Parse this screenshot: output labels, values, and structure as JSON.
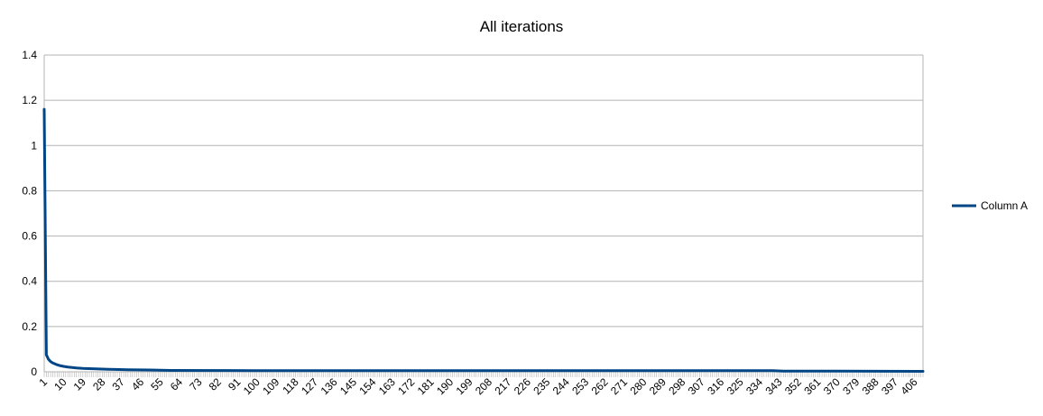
{
  "chart_data": {
    "type": "line",
    "title": "All iterations",
    "xlabel": "",
    "ylabel": "",
    "x_range": [
      1,
      410
    ],
    "ylim": [
      0,
      1.4
    ],
    "y_ticks": [
      0,
      0.2,
      0.4,
      0.6,
      0.8,
      1,
      1.2,
      1.4
    ],
    "y_tick_labels": [
      "0",
      "0.2",
      "0.4",
      "0.6",
      "0.8",
      "1",
      "1.2",
      "1.4"
    ],
    "x_tick_labels": [
      "1",
      "10",
      "19",
      "28",
      "37",
      "46",
      "55",
      "64",
      "73",
      "82",
      "91",
      "100",
      "109",
      "118",
      "127",
      "136",
      "145",
      "154",
      "163",
      "172",
      "181",
      "190",
      "199",
      "208",
      "217",
      "226",
      "235",
      "244",
      "253",
      "262",
      "271",
      "280",
      "289",
      "298",
      "307",
      "316",
      "325",
      "334",
      "343",
      "352",
      "361",
      "370",
      "379",
      "388",
      "397",
      "406"
    ],
    "grid": "horizontal",
    "legend_position": "right",
    "series": [
      {
        "name": "Column A",
        "color": "#004586",
        "x": [
          1,
          2,
          3,
          4,
          5,
          6,
          7,
          8,
          10,
          12,
          14,
          16,
          19,
          22,
          25,
          28,
          31,
          40,
          50,
          55,
          60,
          100,
          150,
          200,
          250,
          300,
          340,
          345,
          370,
          410
        ],
        "values": [
          1.16,
          0.075,
          0.055,
          0.045,
          0.039,
          0.035,
          0.031,
          0.028,
          0.024,
          0.021,
          0.019,
          0.017,
          0.015,
          0.014,
          0.013,
          0.012,
          0.011,
          0.009,
          0.008,
          0.007,
          0.006,
          0.005,
          0.005,
          0.005,
          0.005,
          0.005,
          0.005,
          0.003,
          0.003,
          0.002
        ]
      }
    ]
  }
}
